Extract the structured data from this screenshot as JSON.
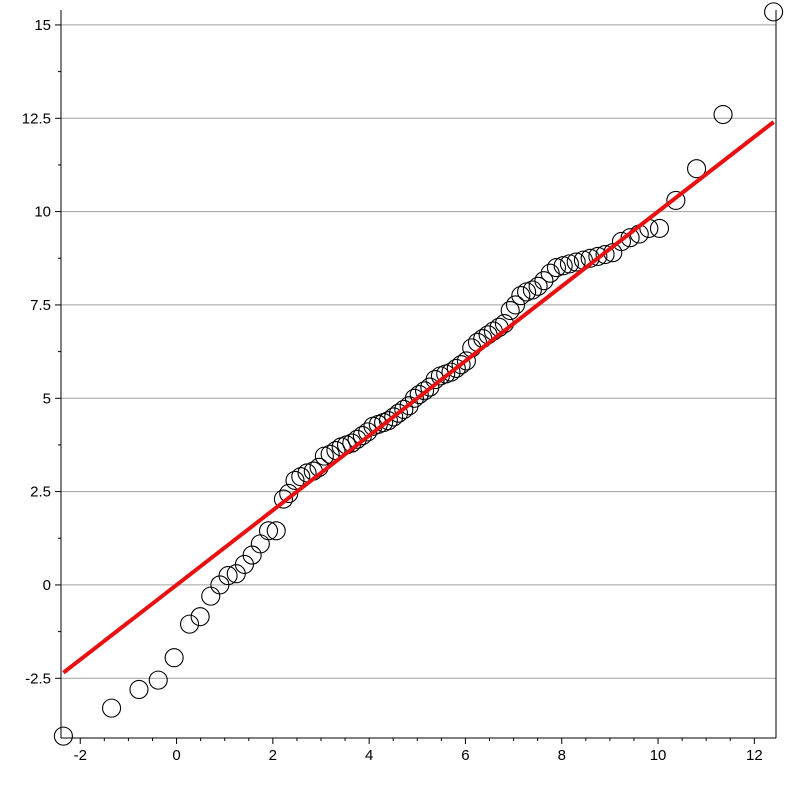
{
  "chart_data": {
    "type": "scatter",
    "title": "",
    "xlabel": "",
    "ylabel": "",
    "xlim": [
      -2.4,
      12.45
    ],
    "ylim": [
      -4.1,
      15.4
    ],
    "x_ticks": [
      -2,
      0,
      2,
      4,
      6,
      8,
      10,
      12
    ],
    "x_tick_labels": [
      "-2",
      "0",
      "2",
      "4",
      "6",
      "8",
      "10",
      "12"
    ],
    "y_ticks": [
      -2.5,
      0,
      2.5,
      5,
      7.5,
      10,
      12.5,
      15
    ],
    "y_tick_labels": [
      "-2.5",
      "0",
      "2.5",
      "5",
      "7.5",
      "10",
      "12.5",
      "15"
    ],
    "grid": {
      "horizontal": true,
      "vertical": false
    },
    "marker_color": "#000000",
    "line_color": "#e81010",
    "grid_color": "#a0a0a0",
    "fit_line": {
      "x": [
        -2.35,
        12.4
      ],
      "y": [
        -2.35,
        12.4
      ]
    },
    "points": {
      "x": [
        -2.35,
        -1.35,
        -0.78,
        -0.38,
        -0.05,
        0.27,
        0.49,
        0.71,
        0.9,
        1.07,
        1.24,
        1.41,
        1.57,
        1.74,
        1.91,
        2.07,
        2.22,
        2.33,
        2.46,
        2.58,
        2.71,
        2.84,
        2.96,
        3.07,
        3.19,
        3.31,
        3.42,
        3.53,
        3.64,
        3.75,
        3.86,
        3.97,
        4.08,
        4.19,
        4.3,
        4.4,
        4.51,
        4.61,
        4.72,
        4.83,
        4.94,
        5.04,
        5.15,
        5.26,
        5.37,
        5.48,
        5.59,
        5.7,
        5.81,
        5.91,
        6.02,
        6.13,
        6.25,
        6.36,
        6.47,
        6.58,
        6.7,
        6.81,
        6.93,
        7.04,
        7.15,
        7.27,
        7.39,
        7.51,
        7.63,
        7.76,
        7.89,
        8.03,
        8.16,
        8.3,
        8.45,
        8.59,
        8.75,
        8.9,
        9.06,
        9.24,
        9.42,
        9.61,
        9.81,
        10.03,
        10.37,
        10.8,
        11.35,
        12.4
      ],
      "y": [
        -4.05,
        -3.3,
        -2.8,
        -2.55,
        -1.95,
        -1.05,
        -0.85,
        -0.3,
        0.0,
        0.25,
        0.3,
        0.55,
        0.8,
        1.1,
        1.45,
        1.45,
        2.3,
        2.45,
        2.8,
        2.9,
        3.0,
        3.05,
        3.15,
        3.45,
        3.5,
        3.6,
        3.7,
        3.75,
        3.8,
        3.9,
        4.0,
        4.1,
        4.25,
        4.3,
        4.35,
        4.4,
        4.5,
        4.6,
        4.7,
        4.8,
        5.0,
        5.1,
        5.2,
        5.3,
        5.5,
        5.6,
        5.65,
        5.7,
        5.8,
        5.9,
        6.0,
        6.35,
        6.5,
        6.6,
        6.7,
        6.8,
        6.9,
        7.0,
        7.35,
        7.5,
        7.75,
        7.85,
        7.9,
        8.0,
        8.15,
        8.35,
        8.5,
        8.55,
        8.6,
        8.65,
        8.7,
        8.75,
        8.8,
        8.85,
        8.9,
        9.2,
        9.3,
        9.4,
        9.55,
        9.55,
        10.3,
        11.15,
        12.6,
        15.35
      ]
    }
  }
}
